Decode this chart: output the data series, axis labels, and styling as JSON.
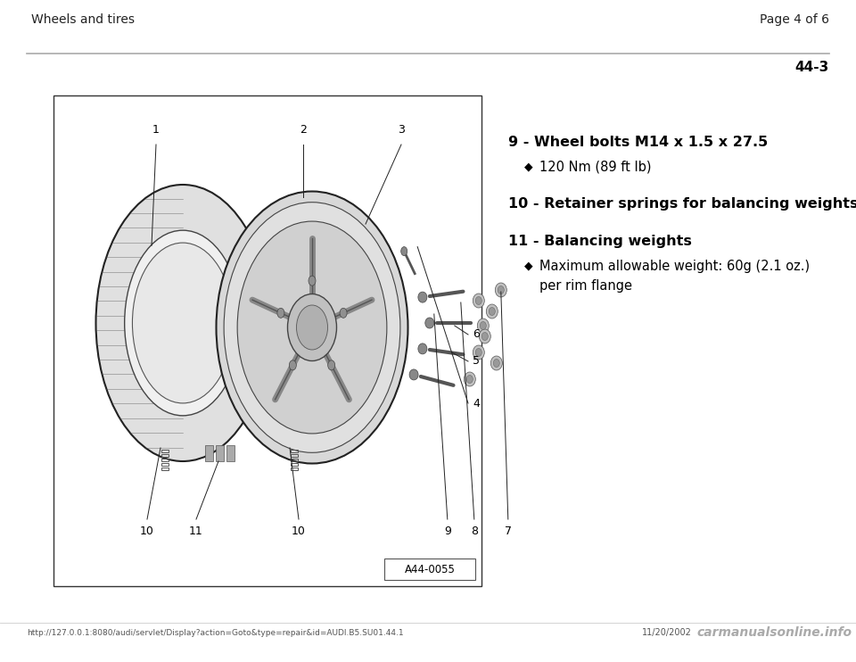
{
  "bg_color": "#ffffff",
  "header_left": "Wheels and tires",
  "header_right": "Page 4 of 6",
  "page_id": "44-3",
  "diagram_label": "A44-0055",
  "items": [
    {
      "number": "9",
      "bold_text": "Wheel bolts M14 x 1.5 x 27.5",
      "sub_items": [
        {
          "text": "120 Nm (89 ft lb)"
        }
      ]
    },
    {
      "number": "10",
      "bold_text": "Retainer springs for balancing weights",
      "sub_items": []
    },
    {
      "number": "11",
      "bold_text": "Balancing weights",
      "sub_items": [
        {
          "text": "Maximum allowable weight: 60g (2.1 oz.)\nper rim flange"
        }
      ]
    }
  ],
  "footer_url": "http://127.0.0.1:8080/audi/servlet/Display?action=Goto&type=repair&id=AUDI.B5.SU01.44.1",
  "footer_date": "11/20/2002",
  "footer_logo": "carmanualsonline.info",
  "text_color": "#000000",
  "gray": "#888888",
  "dark_gray": "#333333"
}
